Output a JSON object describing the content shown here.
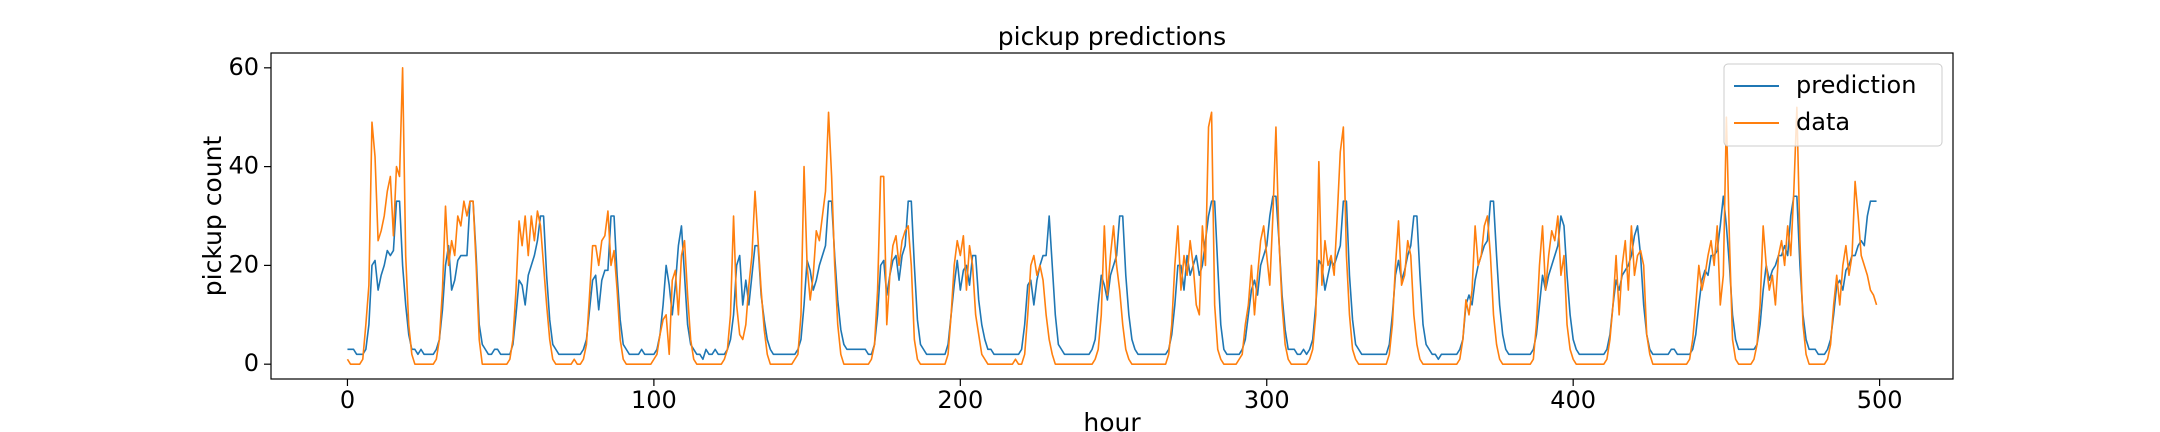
{
  "chart_data": {
    "type": "line",
    "title": "pickup predictions",
    "x_label": "hour",
    "y_label": "pickup count",
    "xlim": [
      -24.95,
      523.95
    ],
    "ylim": [
      -3,
      63
    ],
    "xticks": [
      0,
      100,
      200,
      300,
      400,
      500
    ],
    "yticks": [
      0,
      20,
      40,
      60
    ],
    "legend": "upper right",
    "grid": false,
    "x": [
      0,
      1,
      2,
      3,
      4,
      5,
      6,
      7,
      8,
      9,
      10,
      11,
      12,
      13,
      14,
      15,
      16,
      17,
      18,
      19,
      20,
      21,
      22,
      23,
      24,
      25,
      26,
      27,
      28,
      29,
      30,
      31,
      32,
      33,
      34,
      35,
      36,
      37,
      38,
      39,
      40,
      41,
      42,
      43,
      44,
      45,
      46,
      47,
      48,
      49,
      50,
      51,
      52,
      53,
      54,
      55,
      56,
      57,
      58,
      59,
      60,
      61,
      62,
      63,
      64,
      65,
      66,
      67,
      68,
      69,
      70,
      71,
      72,
      73,
      74,
      75,
      76,
      77,
      78,
      79,
      80,
      81,
      82,
      83,
      84,
      85,
      86,
      87,
      88,
      89,
      90,
      91,
      92,
      93,
      94,
      95,
      96,
      97,
      98,
      99,
      100,
      101,
      102,
      103,
      104,
      105,
      106,
      107,
      108,
      109,
      110,
      111,
      112,
      113,
      114,
      115,
      116,
      117,
      118,
      119,
      120,
      121,
      122,
      123,
      124,
      125,
      126,
      127,
      128,
      129,
      130,
      131,
      132,
      133,
      134,
      135,
      136,
      137,
      138,
      139,
      140,
      141,
      142,
      143,
      144,
      145,
      146,
      147,
      148,
      149,
      150,
      151,
      152,
      153,
      154,
      155,
      156,
      157,
      158,
      159,
      160,
      161,
      162,
      163,
      164,
      165,
      166,
      167,
      168,
      169,
      170,
      171,
      172,
      173,
      174,
      175,
      176,
      177,
      178,
      179,
      180,
      181,
      182,
      183,
      184,
      185,
      186,
      187,
      188,
      189,
      190,
      191,
      192,
      193,
      194,
      195,
      196,
      197,
      198,
      199,
      200,
      201,
      202,
      203,
      204,
      205,
      206,
      207,
      208,
      209,
      210,
      211,
      212,
      213,
      214,
      215,
      216,
      217,
      218,
      219,
      220,
      221,
      222,
      223,
      224,
      225,
      226,
      227,
      228,
      229,
      230,
      231,
      232,
      233,
      234,
      235,
      236,
      237,
      238,
      239,
      240,
      241,
      242,
      243,
      244,
      245,
      246,
      247,
      248,
      249,
      250,
      251,
      252,
      253,
      254,
      255,
      256,
      257,
      258,
      259,
      260,
      261,
      262,
      263,
      264,
      265,
      266,
      267,
      268,
      269,
      270,
      271,
      272,
      273,
      274,
      275,
      276,
      277,
      278,
      279,
      280,
      281,
      282,
      283,
      284,
      285,
      286,
      287,
      288,
      289,
      290,
      291,
      292,
      293,
      294,
      295,
      296,
      297,
      298,
      299,
      300,
      301,
      302,
      303,
      304,
      305,
      306,
      307,
      308,
      309,
      310,
      311,
      312,
      313,
      314,
      315,
      316,
      317,
      318,
      319,
      320,
      321,
      322,
      323,
      324,
      325,
      326,
      327,
      328,
      329,
      330,
      331,
      332,
      333,
      334,
      335,
      336,
      337,
      338,
      339,
      340,
      341,
      342,
      343,
      344,
      345,
      346,
      347,
      348,
      349,
      350,
      351,
      352,
      353,
      354,
      355,
      356,
      357,
      358,
      359,
      360,
      361,
      362,
      363,
      364,
      365,
      366,
      367,
      368,
      369,
      370,
      371,
      372,
      373,
      374,
      375,
      376,
      377,
      378,
      379,
      380,
      381,
      382,
      383,
      384,
      385,
      386,
      387,
      388,
      389,
      390,
      391,
      392,
      393,
      394,
      395,
      396,
      397,
      398,
      399,
      400,
      401,
      402,
      403,
      404,
      405,
      406,
      407,
      408,
      409,
      410,
      411,
      412,
      413,
      414,
      415,
      416,
      417,
      418,
      419,
      420,
      421,
      422,
      423,
      424,
      425,
      426,
      427,
      428,
      429,
      430,
      431,
      432,
      433,
      434,
      435,
      436,
      437,
      438,
      439,
      440,
      441,
      442,
      443,
      444,
      445,
      446,
      447,
      448,
      449,
      450,
      451,
      452,
      453,
      454,
      455,
      456,
      457,
      458,
      459,
      460,
      461,
      462,
      463,
      464,
      465,
      466,
      467,
      468,
      469,
      470,
      471,
      472,
      473,
      474,
      475,
      476,
      477,
      478,
      479,
      480,
      481,
      482,
      483,
      484,
      485,
      486,
      487,
      488,
      489,
      490,
      491,
      492,
      493,
      494,
      495,
      496,
      497,
      498,
      499
    ],
    "series": [
      {
        "name": "prediction",
        "color": "#1f77b4",
        "values": [
          3,
          3,
          3,
          2,
          2,
          2,
          3,
          8,
          20,
          21,
          15,
          18,
          20,
          23,
          22,
          23,
          33,
          33,
          20,
          12,
          6,
          3,
          3,
          2,
          3,
          2,
          2,
          2,
          2,
          3,
          5,
          11,
          20,
          24,
          15,
          17,
          21,
          22,
          22,
          22,
          33,
          33,
          22,
          8,
          4,
          3,
          2,
          2,
          3,
          3,
          2,
          2,
          2,
          2,
          4,
          10,
          17,
          16,
          12,
          18,
          20,
          22,
          25,
          30,
          30,
          18,
          9,
          4,
          3,
          2,
          2,
          2,
          2,
          2,
          2,
          2,
          2,
          3,
          5,
          11,
          17,
          18,
          11,
          17,
          19,
          19,
          30,
          30,
          18,
          9,
          4,
          3,
          2,
          2,
          2,
          2,
          3,
          2,
          2,
          2,
          2,
          3,
          6,
          12,
          20,
          16,
          10,
          16,
          24,
          28,
          18,
          8,
          4,
          3,
          2,
          2,
          1,
          3,
          2,
          2,
          3,
          2,
          2,
          2,
          3,
          5,
          10,
          20,
          22,
          12,
          17,
          12,
          18,
          24,
          24,
          14,
          9,
          5,
          3,
          2,
          2,
          2,
          2,
          2,
          2,
          2,
          2,
          3,
          5,
          12,
          21,
          19,
          15,
          17,
          20,
          22,
          24,
          33,
          33,
          22,
          13,
          7,
          4,
          3,
          3,
          3,
          3,
          3,
          3,
          3,
          2,
          2,
          4,
          10,
          20,
          21,
          14,
          18,
          21,
          22,
          17,
          22,
          24,
          33,
          33,
          20,
          9,
          4,
          3,
          2,
          2,
          2,
          2,
          2,
          2,
          2,
          4,
          10,
          16,
          21,
          15,
          19,
          20,
          16,
          22,
          22,
          13,
          8,
          5,
          3,
          3,
          2,
          2,
          2,
          2,
          2,
          2,
          2,
          2,
          2,
          3,
          8,
          16,
          17,
          12,
          17,
          20,
          22,
          22,
          30,
          20,
          10,
          4,
          3,
          2,
          2,
          2,
          2,
          2,
          2,
          2,
          2,
          2,
          3,
          5,
          12,
          18,
          16,
          13,
          18,
          20,
          22,
          30,
          30,
          18,
          10,
          5,
          3,
          2,
          2,
          2,
          2,
          2,
          2,
          2,
          2,
          2,
          2,
          3,
          6,
          12,
          20,
          20,
          15,
          22,
          18,
          20,
          22,
          18,
          20,
          25,
          30,
          33,
          33,
          20,
          8,
          3,
          2,
          2,
          2,
          2,
          2,
          3,
          5,
          10,
          15,
          17,
          14,
          20,
          22,
          24,
          30,
          34,
          34,
          25,
          14,
          7,
          3,
          3,
          3,
          2,
          2,
          3,
          2,
          3,
          5,
          12,
          21,
          20,
          15,
          18,
          21,
          20,
          22,
          24,
          33,
          33,
          18,
          9,
          4,
          3,
          2,
          2,
          2,
          2,
          2,
          2,
          2,
          2,
          2,
          4,
          10,
          18,
          21,
          17,
          19,
          22,
          24,
          30,
          30,
          18,
          8,
          4,
          3,
          2,
          2,
          1,
          2,
          2,
          2,
          2,
          2,
          2,
          3,
          5,
          12,
          14,
          12,
          17,
          20,
          22,
          24,
          25,
          33,
          33,
          22,
          12,
          6,
          3,
          2,
          2,
          2,
          2,
          2,
          2,
          2,
          2,
          3,
          6,
          12,
          18,
          15,
          18,
          20,
          22,
          24,
          30,
          28,
          18,
          10,
          5,
          3,
          2,
          2,
          2,
          2,
          2,
          2,
          2,
          2,
          2,
          3,
          6,
          12,
          17,
          15,
          18,
          19,
          20,
          22,
          26,
          28,
          22,
          12,
          6,
          3,
          2,
          2,
          2,
          2,
          2,
          2,
          3,
          3,
          2,
          2,
          2,
          2,
          2,
          3,
          6,
          12,
          17,
          19,
          18,
          22,
          22,
          23,
          28,
          34,
          28,
          20,
          10,
          5,
          3,
          3,
          3,
          3,
          3,
          3,
          4,
          8,
          15,
          20,
          17,
          19,
          20,
          22,
          22,
          24,
          22,
          30,
          34,
          34,
          20,
          10,
          5,
          3,
          3,
          3,
          2,
          2,
          2,
          3,
          5,
          10,
          16,
          17,
          15,
          19,
          20,
          22,
          22,
          24,
          25,
          24,
          30,
          33,
          33,
          33
        ]
      },
      {
        "name": "data",
        "color": "#ff7f0e",
        "values": [
          1,
          0,
          0,
          0,
          0,
          1,
          8,
          16,
          49,
          42,
          25,
          27,
          30,
          35,
          38,
          26,
          40,
          38,
          60,
          22,
          8,
          2,
          0,
          0,
          0,
          0,
          0,
          0,
          0,
          1,
          5,
          15,
          32,
          20,
          25,
          22,
          30,
          28,
          33,
          30,
          33,
          33,
          20,
          5,
          0,
          0,
          0,
          0,
          0,
          0,
          0,
          0,
          0,
          1,
          5,
          15,
          29,
          24,
          30,
          22,
          30,
          25,
          31,
          28,
          20,
          12,
          5,
          1,
          0,
          0,
          0,
          0,
          0,
          0,
          1,
          0,
          0,
          1,
          4,
          14,
          24,
          24,
          20,
          25,
          26,
          31,
          20,
          23,
          15,
          5,
          1,
          0,
          0,
          0,
          0,
          0,
          0,
          0,
          0,
          0,
          1,
          2,
          6,
          9,
          10,
          2,
          17,
          19,
          10,
          22,
          25,
          14,
          5,
          1,
          0,
          0,
          0,
          0,
          0,
          0,
          0,
          0,
          0,
          1,
          3,
          10,
          30,
          12,
          6,
          5,
          8,
          16,
          22,
          35,
          25,
          15,
          7,
          2,
          0,
          0,
          0,
          0,
          0,
          0,
          0,
          0,
          1,
          2,
          10,
          40,
          20,
          13,
          18,
          27,
          25,
          30,
          35,
          51,
          38,
          20,
          8,
          2,
          0,
          0,
          0,
          0,
          0,
          0,
          0,
          0,
          0,
          1,
          4,
          15,
          38,
          38,
          8,
          18,
          24,
          26,
          20,
          25,
          27,
          28,
          20,
          5,
          1,
          0,
          0,
          0,
          0,
          0,
          0,
          0,
          0,
          0,
          2,
          10,
          20,
          25,
          22,
          26,
          15,
          24,
          20,
          10,
          6,
          2,
          1,
          0,
          0,
          0,
          0,
          0,
          0,
          0,
          0,
          0,
          1,
          0,
          0,
          2,
          10,
          20,
          22,
          18,
          20,
          17,
          10,
          5,
          2,
          0,
          0,
          0,
          0,
          0,
          0,
          0,
          0,
          0,
          0,
          0,
          0,
          0,
          1,
          3,
          10,
          28,
          14,
          22,
          28,
          20,
          15,
          8,
          3,
          1,
          0,
          0,
          0,
          0,
          0,
          0,
          0,
          0,
          0,
          0,
          0,
          0,
          2,
          8,
          20,
          28,
          15,
          22,
          18,
          25,
          20,
          12,
          10,
          28,
          20,
          48,
          51,
          12,
          3,
          1,
          0,
          0,
          0,
          0,
          0,
          1,
          2,
          8,
          12,
          20,
          10,
          18,
          25,
          28,
          22,
          16,
          30,
          48,
          25,
          12,
          4,
          1,
          0,
          0,
          0,
          0,
          0,
          0,
          1,
          3,
          10,
          41,
          16,
          25,
          20,
          22,
          18,
          30,
          43,
          48,
          22,
          10,
          3,
          1,
          0,
          0,
          0,
          0,
          0,
          0,
          0,
          0,
          0,
          0,
          2,
          8,
          20,
          29,
          16,
          18,
          25,
          22,
          10,
          4,
          1,
          0,
          0,
          0,
          0,
          0,
          0,
          0,
          0,
          0,
          0,
          0,
          0,
          1,
          5,
          13,
          10,
          15,
          28,
          20,
          22,
          28,
          30,
          22,
          10,
          4,
          1,
          0,
          0,
          0,
          0,
          0,
          0,
          0,
          0,
          0,
          0,
          1,
          8,
          20,
          28,
          15,
          22,
          27,
          25,
          30,
          18,
          22,
          8,
          3,
          1,
          0,
          0,
          0,
          0,
          0,
          0,
          0,
          0,
          0,
          0,
          1,
          5,
          12,
          22,
          10,
          20,
          25,
          15,
          28,
          18,
          22,
          23,
          20,
          6,
          2,
          0,
          0,
          0,
          0,
          0,
          0,
          0,
          0,
          0,
          0,
          0,
          0,
          1,
          5,
          12,
          20,
          15,
          18,
          22,
          25,
          20,
          28,
          12,
          18,
          50,
          25,
          5,
          1,
          0,
          0,
          0,
          0,
          0,
          1,
          4,
          12,
          28,
          20,
          15,
          18,
          12,
          22,
          25,
          20,
          28,
          22,
          35,
          52,
          25,
          8,
          2,
          0,
          0,
          0,
          0,
          0,
          0,
          1,
          4,
          12,
          18,
          12,
          20,
          24,
          18,
          22,
          37,
          30,
          22,
          20,
          18,
          15,
          14,
          12
        ]
      }
    ]
  }
}
